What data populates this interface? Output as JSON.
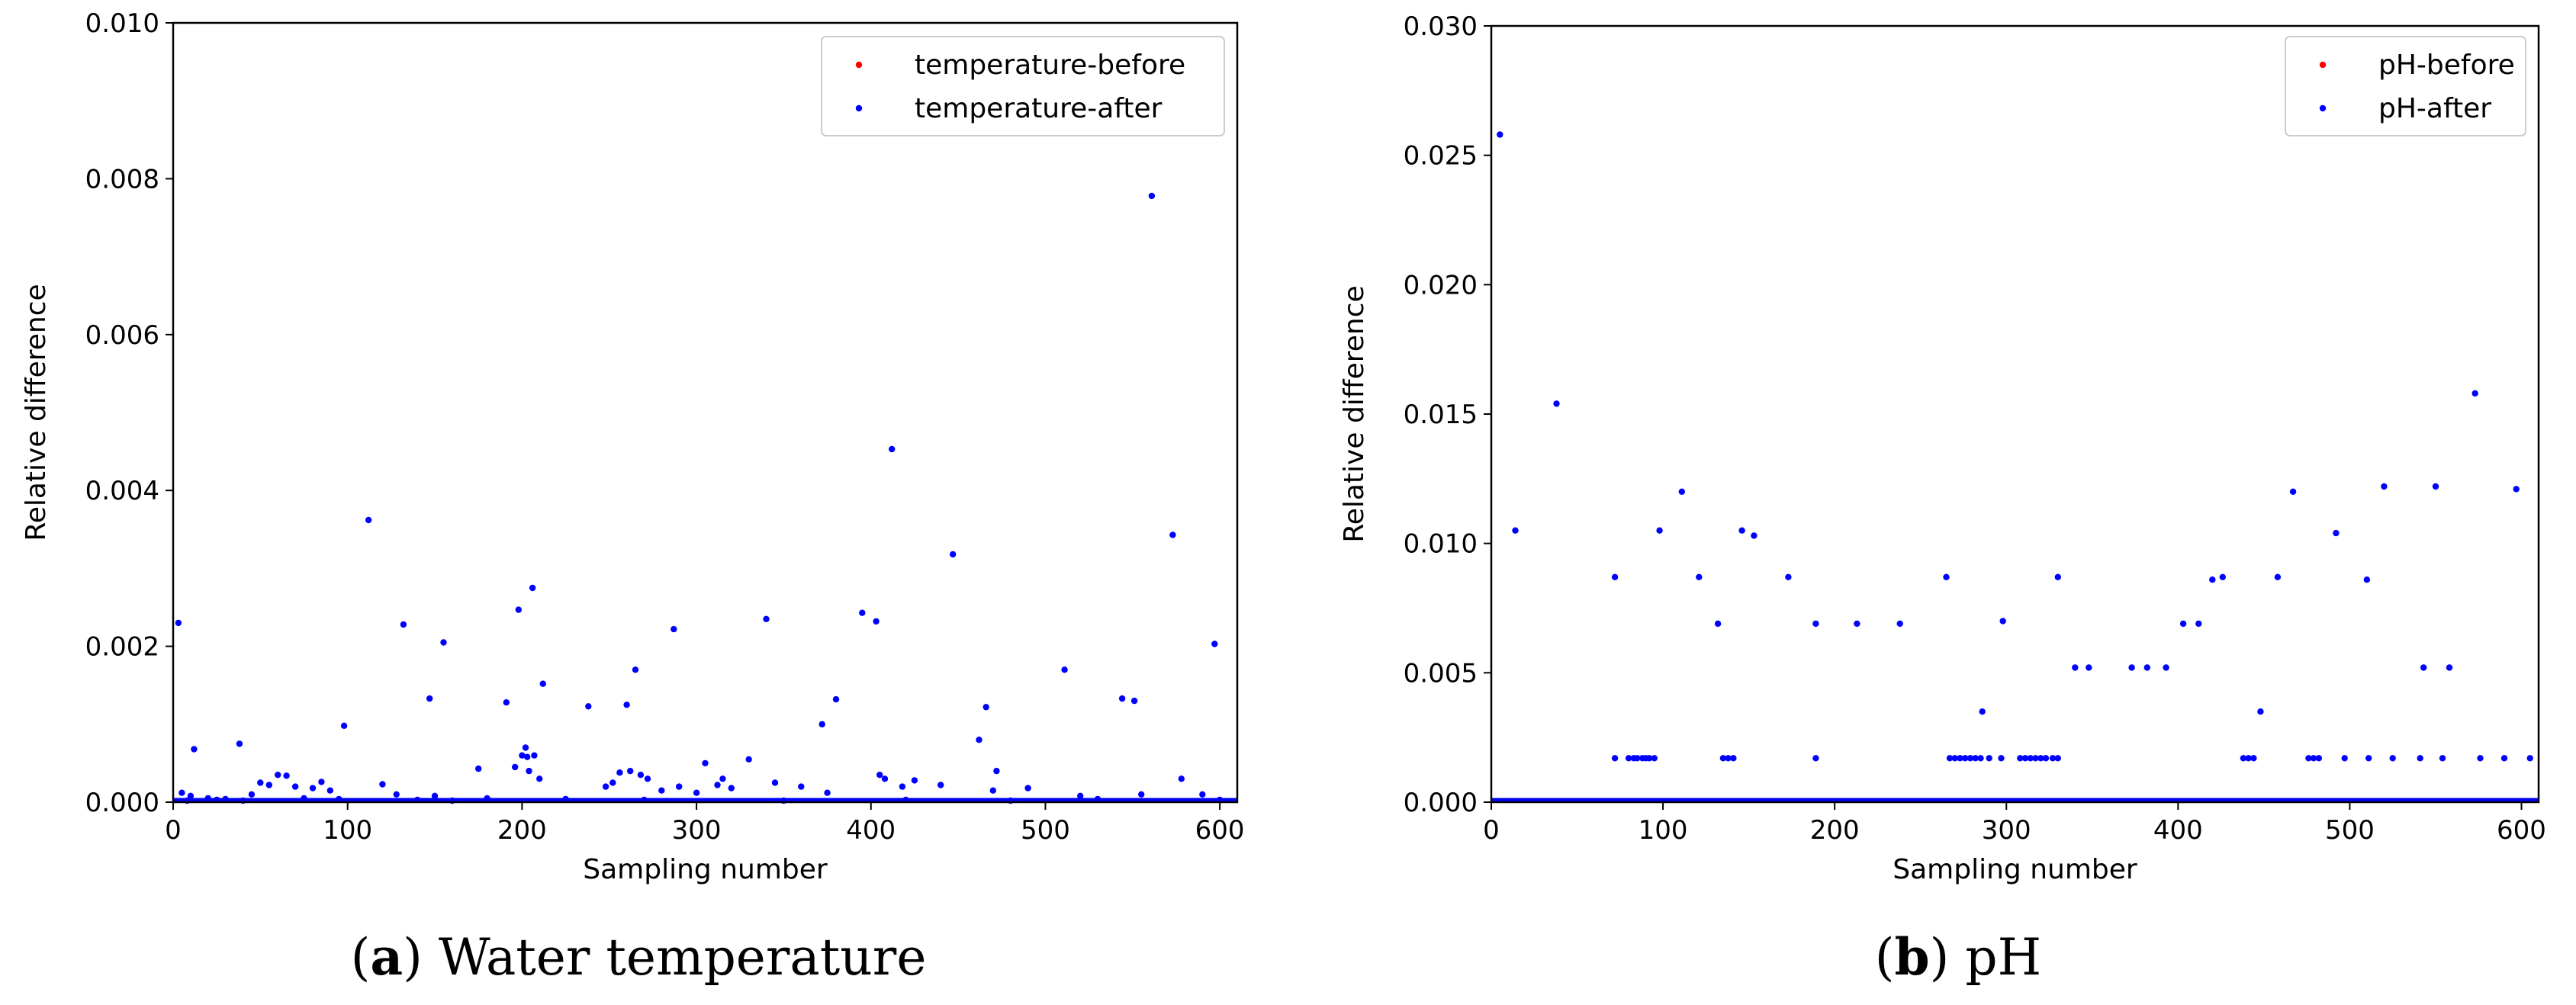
{
  "chart_data": [
    {
      "type": "scatter",
      "caption": {
        "letter": "a",
        "text": "Water temperature"
      },
      "xlabel": "Sampling number",
      "ylabel": "Relative difference",
      "xlim": [
        0,
        610
      ],
      "ylim": [
        0,
        0.01
      ],
      "xticks": [
        0,
        100,
        200,
        300,
        400,
        500,
        600
      ],
      "xtick_labels": [
        "0",
        "100",
        "200",
        "300",
        "400",
        "500",
        "600"
      ],
      "yticks": [
        0,
        0.002,
        0.004,
        0.006,
        0.008,
        0.01
      ],
      "ytick_labels": [
        "0.000",
        "0.002",
        "0.004",
        "0.006",
        "0.008",
        "0.010"
      ],
      "grid": false,
      "legend_position": "top-right",
      "series": [
        {
          "name": "temperature-before",
          "color": "#ff0000",
          "x": [],
          "y": []
        },
        {
          "name": "temperature-after",
          "color": "#0000ff",
          "x": [
            3,
            12,
            38,
            98,
            112,
            132,
            147,
            155,
            175,
            191,
            198,
            203,
            206,
            212,
            238,
            256,
            260,
            265,
            287,
            305,
            330,
            340,
            372,
            380,
            395,
            403,
            412,
            447,
            462,
            466,
            472,
            511,
            544,
            551,
            561,
            573,
            597,
            5,
            10,
            20,
            30,
            45,
            50,
            55,
            60,
            65,
            70,
            80,
            85,
            90,
            120,
            128,
            150,
            180,
            196,
            200,
            202,
            204,
            207,
            210,
            248,
            252,
            262,
            268,
            272,
            280,
            290,
            300,
            312,
            315,
            320,
            345,
            360,
            375,
            405,
            408,
            418,
            425,
            440,
            470,
            490,
            520,
            555,
            578,
            590,
            8,
            25,
            40,
            75,
            95,
            140,
            160,
            225,
            270,
            350,
            420,
            480,
            530,
            600
          ],
          "y": [
            0.0023,
            0.00068,
            0.00075,
            0.00098,
            0.00362,
            0.00228,
            0.00133,
            0.00205,
            0.00043,
            0.00128,
            0.00247,
            0.00058,
            0.00275,
            0.00152,
            0.00123,
            0.00038,
            0.00125,
            0.0017,
            0.00222,
            0.0005,
            0.00055,
            0.00235,
            0.001,
            0.00132,
            0.00243,
            0.00232,
            0.00453,
            0.00318,
            0.0008,
            0.00122,
            0.0004,
            0.0017,
            0.00133,
            0.0013,
            0.00778,
            0.00343,
            0.00203,
            0.00012,
            8e-05,
            5e-05,
            4e-05,
            0.0001,
            0.00025,
            0.00022,
            0.00035,
            0.00034,
            0.0002,
            0.00018,
            0.00026,
            0.00015,
            0.00023,
            0.0001,
            8e-05,
            5e-05,
            0.00045,
            0.0006,
            0.0007,
            0.0004,
            0.0006,
            0.0003,
            0.0002,
            0.00025,
            0.0004,
            0.00035,
            0.0003,
            0.00015,
            0.0002,
            0.00012,
            0.00022,
            0.0003,
            0.00018,
            0.00025,
            0.0002,
            0.00012,
            0.00035,
            0.0003,
            0.0002,
            0.00028,
            0.00022,
            0.00015,
            0.00018,
            8e-05,
            0.0001,
            0.0003,
            0.0001,
            2e-05,
            3e-05,
            2e-05,
            5e-05,
            4e-05,
            3e-05,
            2e-05,
            4e-05,
            3e-05,
            2e-05,
            3e-05,
            2e-05,
            4e-05,
            3e-05
          ]
        }
      ]
    },
    {
      "type": "scatter",
      "caption": {
        "letter": "b",
        "text": "pH"
      },
      "xlabel": "Sampling number",
      "ylabel": "Relative difference",
      "xlim": [
        0,
        610
      ],
      "ylim": [
        0,
        0.03
      ],
      "xticks": [
        0,
        100,
        200,
        300,
        400,
        500,
        600
      ],
      "xtick_labels": [
        "0",
        "100",
        "200",
        "300",
        "400",
        "500",
        "600"
      ],
      "yticks": [
        0,
        0.005,
        0.01,
        0.015,
        0.02,
        0.025,
        0.03
      ],
      "ytick_labels": [
        "0.000",
        "0.005",
        "0.010",
        "0.015",
        "0.020",
        "0.025",
        "0.030"
      ],
      "grid": false,
      "legend_position": "top-right",
      "series": [
        {
          "name": "pH-before",
          "color": "#ff0000",
          "x": [],
          "y": []
        },
        {
          "name": "pH-after",
          "color": "#0000ff",
          "x": [
            5,
            14,
            38,
            72,
            98,
            111,
            121,
            132,
            146,
            153,
            173,
            189,
            213,
            238,
            265,
            286,
            298,
            330,
            340,
            348,
            373,
            382,
            393,
            403,
            412,
            420,
            426,
            448,
            458,
            467,
            492,
            510,
            520,
            543,
            550,
            558,
            573,
            597,
            72,
            80,
            83,
            85,
            88,
            90,
            92,
            95,
            135,
            138,
            141,
            189,
            267,
            270,
            273,
            276,
            279,
            282,
            285,
            290,
            297,
            308,
            311,
            314,
            317,
            320,
            323,
            327,
            330,
            438,
            441,
            444,
            476,
            479,
            482,
            497,
            511,
            525,
            541,
            554,
            576,
            590,
            605
          ],
          "y": [
            0.0258,
            0.0105,
            0.0154,
            0.0087,
            0.0105,
            0.012,
            0.0087,
            0.0069,
            0.0105,
            0.0103,
            0.0087,
            0.0069,
            0.0069,
            0.0069,
            0.0087,
            0.0035,
            0.007,
            0.0087,
            0.0052,
            0.0052,
            0.0052,
            0.0052,
            0.0052,
            0.0069,
            0.0069,
            0.0086,
            0.0087,
            0.0035,
            0.0087,
            0.012,
            0.0104,
            0.0086,
            0.0122,
            0.0052,
            0.0122,
            0.0052,
            0.0158,
            0.0121,
            0.0017,
            0.0017,
            0.0017,
            0.0017,
            0.0017,
            0.0017,
            0.0017,
            0.0017,
            0.0017,
            0.0017,
            0.0017,
            0.0017,
            0.0017,
            0.0017,
            0.0017,
            0.0017,
            0.0017,
            0.0017,
            0.0017,
            0.0017,
            0.0017,
            0.0017,
            0.0017,
            0.0017,
            0.0017,
            0.0017,
            0.0017,
            0.0017,
            0.0017,
            0.0017,
            0.0017,
            0.0017,
            0.0017,
            0.0017,
            0.0017,
            0.0017,
            0.0017,
            0.0017,
            0.0017,
            0.0017,
            0.0017,
            0.0017,
            0.0017
          ]
        }
      ]
    }
  ]
}
